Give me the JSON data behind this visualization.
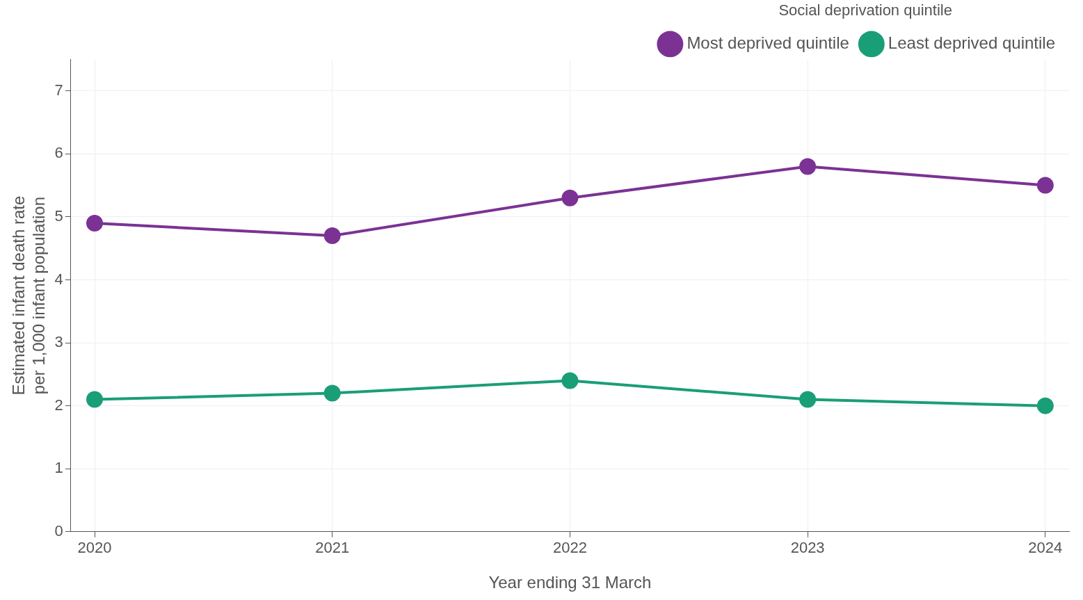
{
  "chart_data": {
    "type": "line",
    "xlabel": "Year ending 31 March",
    "ylabel": "Estimated infant death rate\nper 1,000 infant population",
    "legend_title": "Social deprivation quintile",
    "x": [
      2020,
      2021,
      2022,
      2023,
      2024
    ],
    "xlim": [
      2019.9,
      2024.1
    ],
    "xticks": [
      2020,
      2021,
      2022,
      2023,
      2024
    ],
    "ylim": [
      0,
      7.5
    ],
    "yticks": [
      0,
      1,
      2,
      3,
      4,
      5,
      6,
      7
    ],
    "grid": true,
    "legend": "top right",
    "marker": "circle",
    "line_style": "solid",
    "series": [
      {
        "name": "Most deprived quintile",
        "color": "#7b3294",
        "values": [
          4.9,
          4.7,
          5.3,
          5.8,
          5.5
        ]
      },
      {
        "name": "Least deprived quintile",
        "color": "#1a9e77",
        "values": [
          2.1,
          2.2,
          2.4,
          2.1,
          2.0
        ]
      }
    ]
  }
}
